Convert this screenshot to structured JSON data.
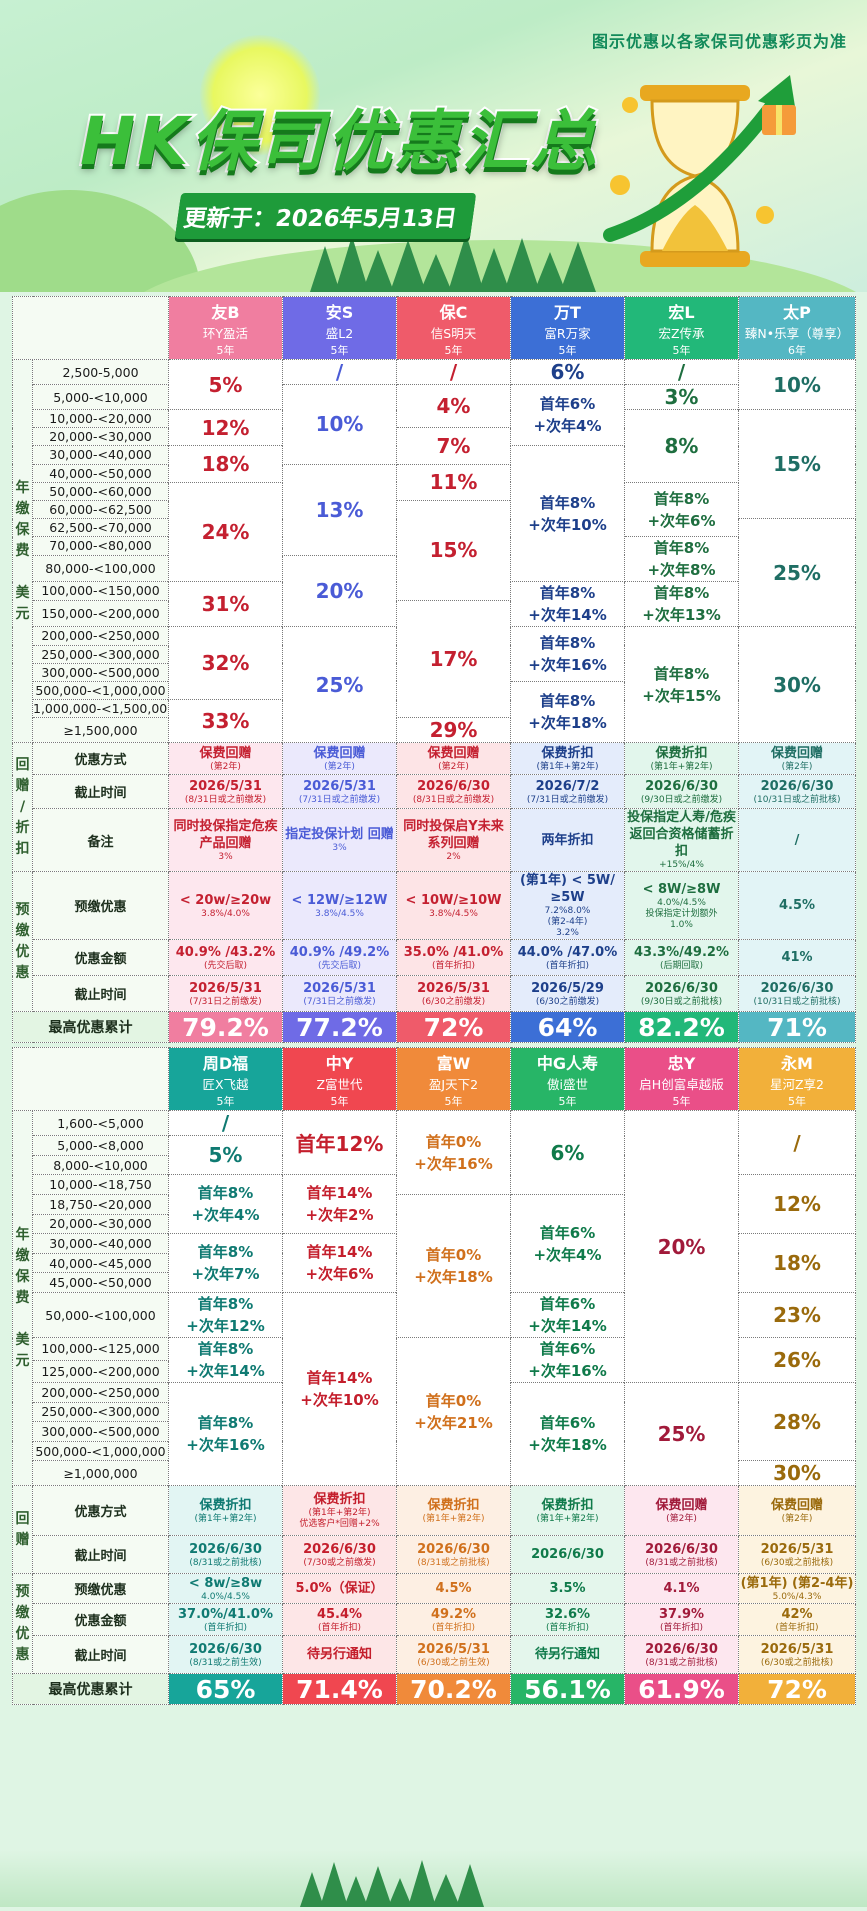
{
  "header": {
    "title": "HK保司优惠汇总",
    "update": "更新于：2026年5月13日",
    "note": "图示优惠以各家保司优惠彩页为准"
  },
  "colors": {
    "t1": [
      "#f07ea0",
      "#6f6be6",
      "#ef5b6a",
      "#3c6fd6",
      "#22b879",
      "#54b7c3"
    ],
    "t1text": [
      "#c42030",
      "#4a5bd6",
      "#c42030",
      "#1d3f8a",
      "#1e6e3f",
      "#1f6e64"
    ],
    "t1bg": [
      "#fff",
      "#fff",
      "#fff",
      "#fff",
      "#fff",
      "#fff"
    ],
    "t2": [
      "#17a59a",
      "#f04750",
      "#f08a3a",
      "#27b567",
      "#ea4f88",
      "#f2b03a"
    ],
    "t2text": [
      "#0f7a72",
      "#c41e2c",
      "#d0701c",
      "#0f7a4a",
      "#a11a3a",
      "#9a6a0c"
    ]
  },
  "t1": {
    "side_a": [
      "年",
      "缴",
      "保",
      "费",
      "",
      "美",
      "元"
    ],
    "side_b": [
      "回",
      "赠",
      "/",
      "折",
      "扣"
    ],
    "side_c": [
      "预",
      "缴",
      "优",
      "惠"
    ],
    "insurers": [
      {
        "name": "友B",
        "product": "环Y盈活",
        "years": "5年"
      },
      {
        "name": "安S",
        "product": "盛L2",
        "years": "5年"
      },
      {
        "name": "保C",
        "product": "信S明天",
        "years": "5年"
      },
      {
        "name": "万T",
        "product": "富R万家",
        "years": "5年"
      },
      {
        "name": "宏L",
        "product": "宏Z传承",
        "years": "5年"
      },
      {
        "name": "太P",
        "product": "臻N•乐享（尊享）",
        "years": "6年"
      }
    ],
    "bands": [
      "2,500-5,000",
      "5,000-<10,000",
      "10,000-<20,000",
      "20,000-<30,000",
      "30,000-<40,000",
      "40,000-<50,000",
      "50,000-<60,000",
      "60,000-<62,500",
      "62,500-<70,000",
      "70,000-<80,000",
      "80,000-<100,000",
      "100,000-<150,000",
      "150,000-<200,000",
      "200,000-<250,000",
      "250,000-<300,000",
      "300,000-<500,000",
      "500,000-<1,000,000",
      "1,000,000-<1,500,000",
      "≥1,500,000"
    ],
    "cols": [
      [
        {
          "r": 2,
          "t": "5%"
        },
        {
          "r": 2,
          "t": "12%"
        },
        {
          "r": 2,
          "t": "18%"
        },
        {
          "r": 5,
          "t": "24%"
        },
        {
          "r": 2,
          "t": "31%"
        },
        {
          "r": 4,
          "t": "32%"
        },
        {
          "r": 2,
          "t": "33%"
        }
      ],
      [
        {
          "r": 1,
          "t": "/"
        },
        {
          "r": 4,
          "t": "10%"
        },
        {
          "r": 5,
          "t": "13%"
        },
        {
          "r": 3,
          "t": "20%"
        },
        {
          "r": 6,
          "t": "25%"
        }
      ],
      [
        {
          "r": 1,
          "t": "/"
        },
        {
          "r": 2,
          "t": "4%"
        },
        {
          "r": 2,
          "t": "7%"
        },
        {
          "r": 2,
          "t": "11%"
        },
        {
          "r": 5,
          "t": "15%"
        },
        {
          "r": 6,
          "t": "17%"
        },
        {
          "r": 1,
          "t": "29%"
        }
      ],
      [
        {
          "r": 1,
          "t": "6%"
        },
        {
          "r": 3,
          "t": "首年6%\n+次年4%"
        },
        {
          "r": 7,
          "t": "首年8%\n+次年10%"
        },
        {
          "r": 2,
          "t": "首年8%\n+次年14%"
        },
        {
          "r": 3,
          "t": "首年8%\n+次年16%"
        },
        {
          "r": 3,
          "t": "首年8%\n+次年18%"
        }
      ],
      [
        {
          "r": 1,
          "t": "/"
        },
        {
          "r": 1,
          "t": "3%"
        },
        {
          "r": 4,
          "t": "8%"
        },
        {
          "r": 3,
          "t": "首年8%\n+次年6%"
        },
        {
          "r": 2,
          "t": "首年8%\n+次年8%"
        },
        {
          "r": 2,
          "t": "首年8%\n+次年13%"
        },
        {
          "r": 6,
          "t": "首年8%\n+次年15%"
        }
      ],
      [
        {
          "r": 2,
          "t": "10%"
        },
        {
          "r": 6,
          "t": "15%"
        },
        {
          "r": 5,
          "t": "25%"
        },
        {
          "r": 6,
          "t": "30%"
        }
      ]
    ],
    "rows": [
      {
        "label": "优惠方式",
        "cells": [
          [
            "保费回赠",
            "(第2年)"
          ],
          [
            "保费回赠",
            "(第2年)"
          ],
          [
            "保费回赠",
            "(第2年)"
          ],
          [
            "保费折扣",
            "(第1年+第2年)"
          ],
          [
            "保费折扣",
            "(第1年+第2年)"
          ],
          [
            "保费回赠",
            "(第2年)"
          ]
        ]
      },
      {
        "label": "截止时间",
        "cells": [
          [
            "2026/5/31",
            "(8/31日或之前缴发)"
          ],
          [
            "2026/5/31",
            "(7/31日或之前缴发)"
          ],
          [
            "2026/6/30",
            "(8/31日或之前缴发)"
          ],
          [
            "2026/7/2",
            "(7/31日或之前缴发)"
          ],
          [
            "2026/6/30",
            "(9/30日或之前缴发)"
          ],
          [
            "2026/6/30",
            "(10/31日或之前批核)"
          ]
        ]
      },
      {
        "label": "备注",
        "cells": [
          [
            "同时投保指定危疾产品回赠",
            "3%"
          ],
          [
            "指定投保计划 回赠",
            "3%"
          ],
          [
            "同时投保启Y未来系列回赠",
            "2%"
          ],
          [
            "两年折扣",
            ""
          ],
          [
            "投保指定人寿/危疾返回合资格储蓄折扣",
            "+15%/4%"
          ],
          [
            "/",
            ""
          ]
        ]
      },
      {
        "label": "预缴优惠",
        "cells": [
          [
            "< 20w/≥20w",
            "3.8%/4.0%"
          ],
          [
            "< 12W/≥12W",
            "3.8%/4.5%"
          ],
          [
            "< 10W/≥10W",
            "3.8%/4.5%"
          ],
          [
            "(第1年) < 5W/≥5W",
            "7.2%8.0%",
            "(第2-4年)",
            "3.2%"
          ],
          [
            "< 8W/≥8W",
            "4.0%/4.5%",
            "投保指定计划额外",
            "1.0%"
          ],
          [
            "4.5%",
            ""
          ]
        ]
      },
      {
        "label": "优惠金额",
        "cells": [
          [
            "40.9% /43.2%",
            "(先交后取)"
          ],
          [
            "40.9% /49.2%",
            "(先交后取)"
          ],
          [
            "35.0% /41.0%",
            "(首年折扣)"
          ],
          [
            "44.0% /47.0%",
            "(首年折扣)"
          ],
          [
            "43.3%/49.2%",
            "(后期回取)"
          ],
          [
            "41%",
            ""
          ]
        ]
      },
      {
        "label": "截止时间",
        "cells": [
          [
            "2026/5/31",
            "(7/31日之前缴发)"
          ],
          [
            "2026/5/31",
            "(7/31日之前缴发)"
          ],
          [
            "2026/5/31",
            "(6/30之前缴发)"
          ],
          [
            "2026/5/29",
            "(6/30之前缴发)"
          ],
          [
            "2026/6/30",
            "(9/30日或之前批核)"
          ],
          [
            "2026/6/30",
            "(10/31日或之前批核)"
          ]
        ]
      }
    ],
    "total_label": "最高优惠累计",
    "totals": [
      "79.2%",
      "77.2%",
      "72%",
      "64%",
      "82.2%",
      "71%"
    ]
  },
  "t2": {
    "side_a": [
      "年",
      "缴",
      "保",
      "费",
      "",
      "美",
      "元"
    ],
    "side_b": [
      "回",
      "赠"
    ],
    "side_c": [
      "预",
      "缴",
      "优",
      "惠"
    ],
    "insurers": [
      {
        "name": "周D福",
        "product": "匠X飞越",
        "years": "5年"
      },
      {
        "name": "中Y",
        "product": "Z富世代",
        "years": "5年"
      },
      {
        "name": "富W",
        "product": "盈J天下2",
        "years": "5年"
      },
      {
        "name": "中G人寿",
        "product": "傲i盛世",
        "years": "5年"
      },
      {
        "name": "忠Y",
        "product": "启H创富卓越版",
        "years": "5年"
      },
      {
        "name": "永M",
        "product": "星河Z享2",
        "years": "5年"
      }
    ],
    "bands": [
      "1,600-<5,000",
      "5,000-<8,000",
      "8,000-<10,000",
      "10,000-<18,750",
      "18,750-<20,000",
      "20,000-<30,000",
      "30,000-<40,000",
      "40,000-<45,000",
      "45,000-<50,000",
      "50,000-<100,000",
      "100,000-<125,000",
      "125,000-<200,000",
      "200,000-<250,000",
      "250,000-<300,000",
      "300,000-<500,000",
      "500,000-<1,000,000",
      "≥1,000,000"
    ],
    "cols": [
      [
        {
          "r": 1,
          "t": "/"
        },
        {
          "r": 2,
          "t": "5%"
        },
        {
          "r": 3,
          "t": "首年8%\n+次年4%"
        },
        {
          "r": 3,
          "t": "首年8%\n+次年7%"
        },
        {
          "r": 1,
          "t": "首年8%\n+次年12%"
        },
        {
          "r": 2,
          "t": "首年8%\n+次年14%"
        },
        {
          "r": 5,
          "t": "首年8%\n+次年16%"
        }
      ],
      [
        {
          "r": 3,
          "t": "首年12%"
        },
        {
          "r": 3,
          "t": "首年14%\n+次年2%"
        },
        {
          "r": 3,
          "t": "首年14%\n+次年6%"
        },
        {
          "r": 8,
          "t": "首年14%\n+次年10%"
        }
      ],
      [
        {
          "r": 4,
          "t": "首年0%\n+次年16%"
        },
        {
          "r": 6,
          "t": "首年0%\n+次年18%"
        },
        {
          "r": 7,
          "t": "首年0%\n+次年21%"
        }
      ],
      [
        {
          "r": 4,
          "t": "6%"
        },
        {
          "r": 5,
          "t": "首年6%\n+次年4%"
        },
        {
          "r": 1,
          "t": "首年6%\n+次年14%"
        },
        {
          "r": 2,
          "t": "首年6%\n+次年16%"
        },
        {
          "r": 5,
          "t": "首年6%\n+次年18%"
        }
      ],
      [
        {
          "r": 12,
          "t": "20%"
        },
        {
          "r": 5,
          "t": "25%"
        }
      ],
      [
        {
          "r": 3,
          "t": "/"
        },
        {
          "r": 3,
          "t": "12%"
        },
        {
          "r": 3,
          "t": "18%"
        },
        {
          "r": 1,
          "t": "23%"
        },
        {
          "r": 2,
          "t": "26%"
        },
        {
          "r": 4,
          "t": "28%"
        },
        {
          "r": 1,
          "t": "30%"
        }
      ]
    ],
    "rows": [
      {
        "label": "优惠方式",
        "cells": [
          [
            "保费折扣",
            "(第1年+第2年)"
          ],
          [
            "保费折扣",
            "(第1年+第2年)",
            "优选客户*回赠+2%"
          ],
          [
            "保费折扣",
            "(第1年+第2年)"
          ],
          [
            "保费折扣",
            "(第1年+第2年)"
          ],
          [
            "保费回赠",
            "(第2年)"
          ],
          [
            "保费回赠",
            "(第2年)"
          ]
        ]
      },
      {
        "label": "截止时间",
        "cells": [
          [
            "2026/6/30",
            "(8/31或之前批核)"
          ],
          [
            "2026/6/30",
            "(7/30或之前缴发)"
          ],
          [
            "2026/6/30",
            "(8/31或之前批核)"
          ],
          [
            "2026/6/30",
            ""
          ],
          [
            "2026/6/30",
            "(8/31或之前批核)"
          ],
          [
            "2026/5/31",
            "(6/30或之前批核)"
          ]
        ]
      },
      {
        "label": "预缴优惠",
        "cells": [
          [
            "< 8w/≥8w",
            "4.0%/4.5%"
          ],
          [
            "5.0%（保证）",
            ""
          ],
          [
            "4.5%",
            ""
          ],
          [
            "3.5%",
            ""
          ],
          [
            "4.1%",
            ""
          ],
          [
            "(第1年) (第2-4年)",
            "5.0%/4.3%"
          ]
        ]
      },
      {
        "label": "优惠金额",
        "cells": [
          [
            "37.0%/41.0%",
            "(首年折扣)"
          ],
          [
            "45.4%",
            "(首年折扣)"
          ],
          [
            "49.2%",
            "(首年折扣)"
          ],
          [
            "32.6%",
            "(首年折扣)"
          ],
          [
            "37.9%",
            "(首年折扣)"
          ],
          [
            "42%",
            "(首年折扣)"
          ]
        ]
      },
      {
        "label": "截止时间",
        "cells": [
          [
            "2026/6/30",
            "(8/31或之前生效)"
          ],
          [
            "待另行通知",
            ""
          ],
          [
            "2026/5/31",
            "(6/30或之前生效)"
          ],
          [
            "待另行通知",
            ""
          ],
          [
            "2026/6/30",
            "(8/31或之前批核)"
          ],
          [
            "2026/5/31",
            "(6/30或之前批核)"
          ]
        ]
      }
    ],
    "total_label": "最高优惠累计",
    "totals": [
      "65%",
      "71.4%",
      "70.2%",
      "56.1%",
      "61.9%",
      "72%"
    ]
  }
}
